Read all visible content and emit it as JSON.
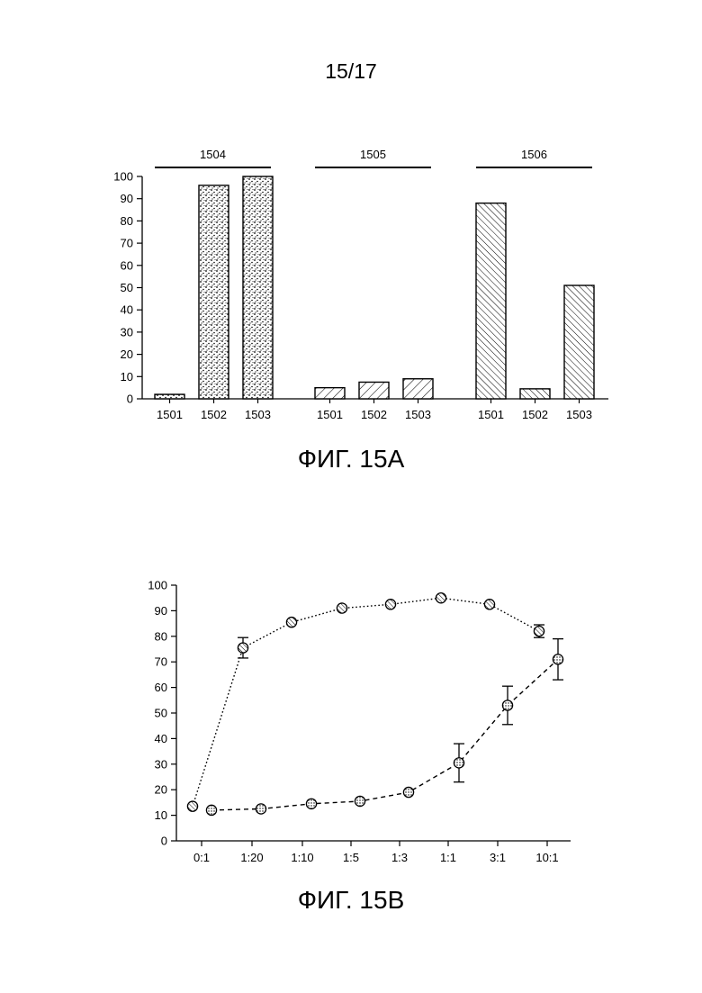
{
  "page_number": "15/17",
  "figure_a": {
    "caption": "ФИГ. 15А",
    "chart_data": {
      "type": "bar",
      "ylim": [
        0,
        100
      ],
      "yticks": [
        0,
        10,
        20,
        30,
        40,
        50,
        60,
        70,
        80,
        90,
        100
      ],
      "groups": [
        {
          "label": "1504",
          "pattern": "stipple",
          "categories": [
            "1501",
            "1502",
            "1503"
          ],
          "values": [
            2,
            96,
            100
          ]
        },
        {
          "label": "1505",
          "pattern": "hatch-wide",
          "categories": [
            "1501",
            "1502",
            "1503"
          ],
          "values": [
            5,
            7.5,
            9
          ]
        },
        {
          "label": "1506",
          "pattern": "hatch-dense",
          "categories": [
            "1501",
            "1502",
            "1503"
          ],
          "values": [
            88,
            4.5,
            51
          ]
        }
      ]
    }
  },
  "figure_b": {
    "caption": "ФИГ. 15В",
    "chart_data": {
      "type": "line",
      "ylim": [
        0,
        100
      ],
      "yticks": [
        0,
        10,
        20,
        30,
        40,
        50,
        60,
        70,
        80,
        90,
        100
      ],
      "categories": [
        "0:1",
        "1:20",
        "1:10",
        "1:5",
        "1:3",
        "1:1",
        "3:1",
        "10:1"
      ],
      "series": [
        {
          "style": "dotted",
          "marker": "hatched-circle",
          "points": [
            {
              "x": "0:1",
              "y": 13.5
            },
            {
              "x": "1:20",
              "y": 75.5,
              "err": 4
            },
            {
              "x": "1:10",
              "y": 85.5
            },
            {
              "x": "1:5",
              "y": 91
            },
            {
              "x": "1:3",
              "y": 92.5
            },
            {
              "x": "1:1",
              "y": 95
            },
            {
              "x": "3:1",
              "y": 92.5
            },
            {
              "x": "10:1",
              "y": 82,
              "err": 2.5
            }
          ]
        },
        {
          "style": "dashed",
          "marker": "stippled-circle",
          "points": [
            {
              "x": "0:1",
              "y": 12
            },
            {
              "x": "1:20",
              "y": 12.5
            },
            {
              "x": "1:10",
              "y": 14.5
            },
            {
              "x": "1:5",
              "y": 15.5
            },
            {
              "x": "1:3",
              "y": 19
            },
            {
              "x": "1:1",
              "y": 30.5,
              "err": 7.5
            },
            {
              "x": "3:1",
              "y": 53,
              "err": 7.5
            },
            {
              "x": "10:1",
              "y": 71,
              "err": 8
            }
          ]
        }
      ]
    }
  }
}
